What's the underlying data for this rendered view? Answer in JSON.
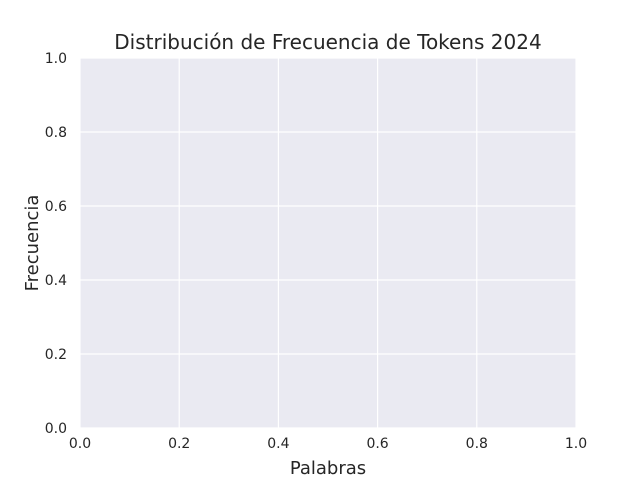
{
  "chart_data": {
    "type": "scatter",
    "title": "Distribución de Frecuencia de Tokens 2024",
    "xlabel": "Palabras",
    "ylabel": "Frecuencia",
    "xlim": [
      0,
      1
    ],
    "ylim": [
      0,
      1
    ],
    "xticks": [
      "0.0",
      "0.2",
      "0.4",
      "0.6",
      "0.8",
      "1.0"
    ],
    "yticks": [
      "0.0",
      "0.2",
      "0.4",
      "0.6",
      "0.8",
      "1.0"
    ],
    "series": [],
    "grid": true,
    "background_color": "#EAEAF2",
    "grid_color": "#FFFFFF"
  }
}
